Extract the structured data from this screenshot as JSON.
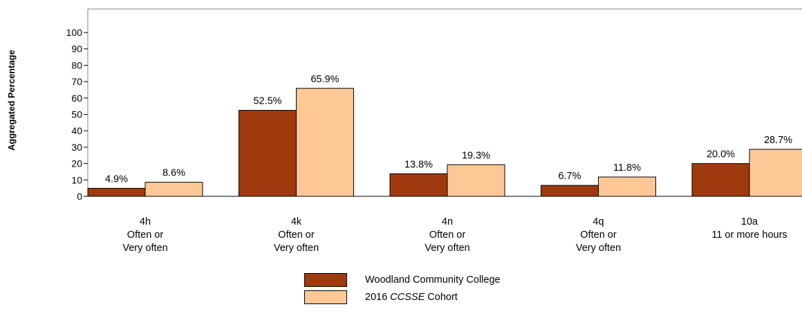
{
  "chart_data": {
    "type": "bar",
    "ylabel": "Aggregated Percentage",
    "xlabel": "",
    "ylim": [
      0,
      100
    ],
    "yticks": [
      "0",
      "10",
      "20",
      "30",
      "40",
      "50",
      "60",
      "70",
      "80",
      "90",
      "100"
    ],
    "categories": [
      {
        "lines": [
          "4h",
          "Often or",
          "Very often"
        ]
      },
      {
        "lines": [
          "4k",
          "Often or",
          "Very often"
        ]
      },
      {
        "lines": [
          "4n",
          "Often or",
          "Very often"
        ]
      },
      {
        "lines": [
          "4q",
          "Often or",
          "Very often"
        ]
      },
      {
        "lines": [
          "10a",
          "11 or more hours"
        ]
      }
    ],
    "series": [
      {
        "name": "Woodland Community College",
        "color": "#9e3a0e",
        "values": [
          4.9,
          52.5,
          13.8,
          6.7,
          20.0
        ],
        "labels": [
          "4.9%",
          "52.5%",
          "13.8%",
          "6.7%",
          "20.0%"
        ]
      },
      {
        "name": "2016 CCSSE Cohort",
        "color": "#fdc896",
        "values": [
          8.6,
          65.9,
          19.3,
          11.8,
          28.7
        ],
        "labels": [
          "8.6%",
          "65.9%",
          "19.3%",
          "11.8%",
          "28.7%"
        ]
      }
    ],
    "grid": false,
    "legend_position": "bottom-center"
  },
  "legend": {
    "items": [
      {
        "prefix": "Woodland Community College",
        "emph": "",
        "suffix": ""
      },
      {
        "prefix": "2016 ",
        "emph": "CCSSE",
        "suffix": " Cohort"
      }
    ]
  }
}
